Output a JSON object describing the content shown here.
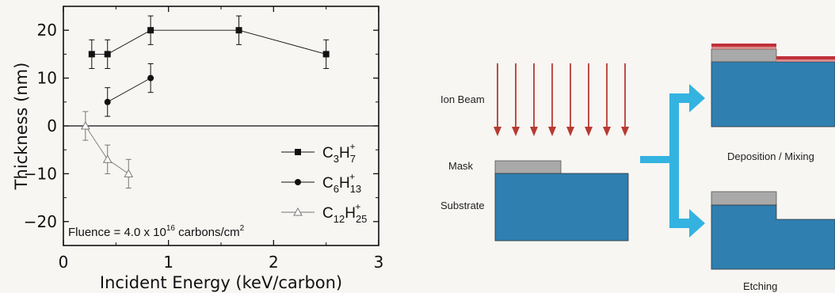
{
  "chart_data": {
    "type": "scatter",
    "xlabel": "Incident Energy (keV/carbon)",
    "ylabel": "Thickness (nm)",
    "xlim": [
      0,
      3
    ],
    "ylim": [
      -25,
      25
    ],
    "x_ticks": [
      "0",
      "1",
      "2",
      "3"
    ],
    "y_ticks": [
      "−20",
      "−10",
      "0",
      "10",
      "20"
    ],
    "x_tick_values": [
      0,
      1,
      2,
      3
    ],
    "y_tick_values": [
      -20,
      -10,
      0,
      10,
      20
    ],
    "annotation": {
      "prefix": "Fluence = 4.0 x 10",
      "exp": "16",
      "mid": " carbons/cm",
      "exp2": "2"
    },
    "legend_position": "right",
    "zero_line": true,
    "series": [
      {
        "name": "C3H7+",
        "label": {
          "a": "C",
          "asub": "3",
          "b": "H",
          "bsub": "7",
          "sup": "+"
        },
        "marker": "square",
        "color": "#111111",
        "x": [
          0.27,
          0.42,
          0.83,
          1.67,
          2.5
        ],
        "y": [
          15,
          15,
          20,
          20,
          15
        ],
        "err": [
          3,
          3,
          3,
          3,
          3
        ]
      },
      {
        "name": "C6H13+",
        "label": {
          "a": "C",
          "asub": "6",
          "b": "H",
          "bsub": "13",
          "sup": "+"
        },
        "marker": "circle",
        "color": "#111111",
        "x": [
          0.42,
          0.83
        ],
        "y": [
          5,
          10
        ],
        "err": [
          3,
          3
        ]
      },
      {
        "name": "C12H25+",
        "label": {
          "a": "C",
          "asub": "12",
          "b": "H",
          "bsub": "25",
          "sup": "+"
        },
        "marker": "triangle",
        "color": "#777777",
        "x": [
          0.21,
          0.42,
          0.62
        ],
        "y": [
          0,
          -7,
          -10
        ],
        "err": [
          3,
          3,
          3
        ]
      }
    ]
  },
  "diagram": {
    "ion_beam_label": "Ion Beam",
    "mask_label": "Mask",
    "substrate_label": "Substrate",
    "deposition_label": "Deposition / Mixing",
    "etching_label": "Etching",
    "colors": {
      "substrate": "#2f7fb0",
      "mask": "#a9a9a9",
      "arrow_red": "#b83a32",
      "flow_arrow": "#34b3e0",
      "deposit": "#c0303a"
    }
  }
}
